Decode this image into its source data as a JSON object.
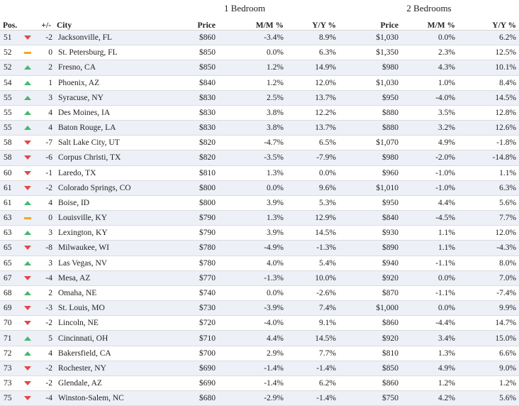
{
  "header": {
    "group_1br": "1 Bedroom",
    "group_2br": "2 Bedrooms",
    "col_pos": "Pos.",
    "col_change": "+/-",
    "col_city": "City",
    "col_price_1br": "Price",
    "col_mm_1br": "M/M %",
    "col_yy_1br": "Y/Y %",
    "col_price_2br": "Price",
    "col_mm_2br": "M/M %",
    "col_yy_2br": "Y/Y %"
  },
  "colors": {
    "up": "#47b86c",
    "down": "#e04848",
    "flat": "#f2a81e",
    "stripe": "#edf0f7"
  },
  "rows": [
    {
      "pos": "51",
      "dir": "down",
      "change": "-2",
      "city": "Jacksonville, FL",
      "price1": "$860",
      "mm1": "-3.4%",
      "yy1": "8.9%",
      "price2": "$1,030",
      "mm2": "0.0%",
      "yy2": "6.2%"
    },
    {
      "pos": "52",
      "dir": "flat",
      "change": "0",
      "city": "St. Petersburg, FL",
      "price1": "$850",
      "mm1": "0.0%",
      "yy1": "6.3%",
      "price2": "$1,350",
      "mm2": "2.3%",
      "yy2": "12.5%"
    },
    {
      "pos": "52",
      "dir": "up",
      "change": "2",
      "city": "Fresno, CA",
      "price1": "$850",
      "mm1": "1.2%",
      "yy1": "14.9%",
      "price2": "$980",
      "mm2": "4.3%",
      "yy2": "10.1%"
    },
    {
      "pos": "54",
      "dir": "up",
      "change": "1",
      "city": "Phoenix, AZ",
      "price1": "$840",
      "mm1": "1.2%",
      "yy1": "12.0%",
      "price2": "$1,030",
      "mm2": "1.0%",
      "yy2": "8.4%"
    },
    {
      "pos": "55",
      "dir": "up",
      "change": "3",
      "city": "Syracuse, NY",
      "price1": "$830",
      "mm1": "2.5%",
      "yy1": "13.7%",
      "price2": "$950",
      "mm2": "-4.0%",
      "yy2": "14.5%"
    },
    {
      "pos": "55",
      "dir": "up",
      "change": "4",
      "city": "Des Moines, IA",
      "price1": "$830",
      "mm1": "3.8%",
      "yy1": "12.2%",
      "price2": "$880",
      "mm2": "3.5%",
      "yy2": "12.8%"
    },
    {
      "pos": "55",
      "dir": "up",
      "change": "4",
      "city": "Baton Rouge, LA",
      "price1": "$830",
      "mm1": "3.8%",
      "yy1": "13.7%",
      "price2": "$880",
      "mm2": "3.2%",
      "yy2": "12.6%"
    },
    {
      "pos": "58",
      "dir": "down",
      "change": "-7",
      "city": "Salt Lake City, UT",
      "price1": "$820",
      "mm1": "-4.7%",
      "yy1": "6.5%",
      "price2": "$1,070",
      "mm2": "4.9%",
      "yy2": "-1.8%"
    },
    {
      "pos": "58",
      "dir": "down",
      "change": "-6",
      "city": "Corpus Christi, TX",
      "price1": "$820",
      "mm1": "-3.5%",
      "yy1": "-7.9%",
      "price2": "$980",
      "mm2": "-2.0%",
      "yy2": "-14.8%"
    },
    {
      "pos": "60",
      "dir": "down",
      "change": "-1",
      "city": "Laredo, TX",
      "price1": "$810",
      "mm1": "1.3%",
      "yy1": "0.0%",
      "price2": "$960",
      "mm2": "-1.0%",
      "yy2": "1.1%"
    },
    {
      "pos": "61",
      "dir": "down",
      "change": "-2",
      "city": "Colorado Springs, CO",
      "price1": "$800",
      "mm1": "0.0%",
      "yy1": "9.6%",
      "price2": "$1,010",
      "mm2": "-1.0%",
      "yy2": "6.3%"
    },
    {
      "pos": "61",
      "dir": "up",
      "change": "4",
      "city": "Boise, ID",
      "price1": "$800",
      "mm1": "3.9%",
      "yy1": "5.3%",
      "price2": "$950",
      "mm2": "4.4%",
      "yy2": "5.6%"
    },
    {
      "pos": "63",
      "dir": "flat",
      "change": "0",
      "city": "Louisville, KY",
      "price1": "$790",
      "mm1": "1.3%",
      "yy1": "12.9%",
      "price2": "$840",
      "mm2": "-4.5%",
      "yy2": "7.7%"
    },
    {
      "pos": "63",
      "dir": "up",
      "change": "3",
      "city": "Lexington, KY",
      "price1": "$790",
      "mm1": "3.9%",
      "yy1": "14.5%",
      "price2": "$930",
      "mm2": "1.1%",
      "yy2": "12.0%"
    },
    {
      "pos": "65",
      "dir": "down",
      "change": "-8",
      "city": "Milwaukee, WI",
      "price1": "$780",
      "mm1": "-4.9%",
      "yy1": "-1.3%",
      "price2": "$890",
      "mm2": "1.1%",
      "yy2": "-4.3%"
    },
    {
      "pos": "65",
      "dir": "up",
      "change": "3",
      "city": "Las Vegas, NV",
      "price1": "$780",
      "mm1": "4.0%",
      "yy1": "5.4%",
      "price2": "$940",
      "mm2": "-1.1%",
      "yy2": "8.0%"
    },
    {
      "pos": "67",
      "dir": "down",
      "change": "-4",
      "city": "Mesa, AZ",
      "price1": "$770",
      "mm1": "-1.3%",
      "yy1": "10.0%",
      "price2": "$920",
      "mm2": "0.0%",
      "yy2": "7.0%"
    },
    {
      "pos": "68",
      "dir": "up",
      "change": "2",
      "city": "Omaha, NE",
      "price1": "$740",
      "mm1": "0.0%",
      "yy1": "-2.6%",
      "price2": "$870",
      "mm2": "-1.1%",
      "yy2": "-7.4%"
    },
    {
      "pos": "69",
      "dir": "down",
      "change": "-3",
      "city": "St. Louis, MO",
      "price1": "$730",
      "mm1": "-3.9%",
      "yy1": "7.4%",
      "price2": "$1,000",
      "mm2": "0.0%",
      "yy2": "9.9%"
    },
    {
      "pos": "70",
      "dir": "down",
      "change": "-2",
      "city": "Lincoln, NE",
      "price1": "$720",
      "mm1": "-4.0%",
      "yy1": "9.1%",
      "price2": "$860",
      "mm2": "-4.4%",
      "yy2": "14.7%"
    },
    {
      "pos": "71",
      "dir": "up",
      "change": "5",
      "city": "Cincinnati, OH",
      "price1": "$710",
      "mm1": "4.4%",
      "yy1": "14.5%",
      "price2": "$920",
      "mm2": "3.4%",
      "yy2": "15.0%"
    },
    {
      "pos": "72",
      "dir": "up",
      "change": "4",
      "city": "Bakersfield, CA",
      "price1": "$700",
      "mm1": "2.9%",
      "yy1": "7.7%",
      "price2": "$810",
      "mm2": "1.3%",
      "yy2": "6.6%"
    },
    {
      "pos": "73",
      "dir": "down",
      "change": "-2",
      "city": "Rochester, NY",
      "price1": "$690",
      "mm1": "-1.4%",
      "yy1": "-1.4%",
      "price2": "$850",
      "mm2": "4.9%",
      "yy2": "9.0%"
    },
    {
      "pos": "73",
      "dir": "down",
      "change": "-2",
      "city": "Glendale, AZ",
      "price1": "$690",
      "mm1": "-1.4%",
      "yy1": "6.2%",
      "price2": "$860",
      "mm2": "1.2%",
      "yy2": "1.2%"
    },
    {
      "pos": "75",
      "dir": "down",
      "change": "-4",
      "city": "Winston-Salem, NC",
      "price1": "$680",
      "mm1": "-2.9%",
      "yy1": "-1.4%",
      "price2": "$750",
      "mm2": "4.2%",
      "yy2": "5.6%"
    }
  ]
}
